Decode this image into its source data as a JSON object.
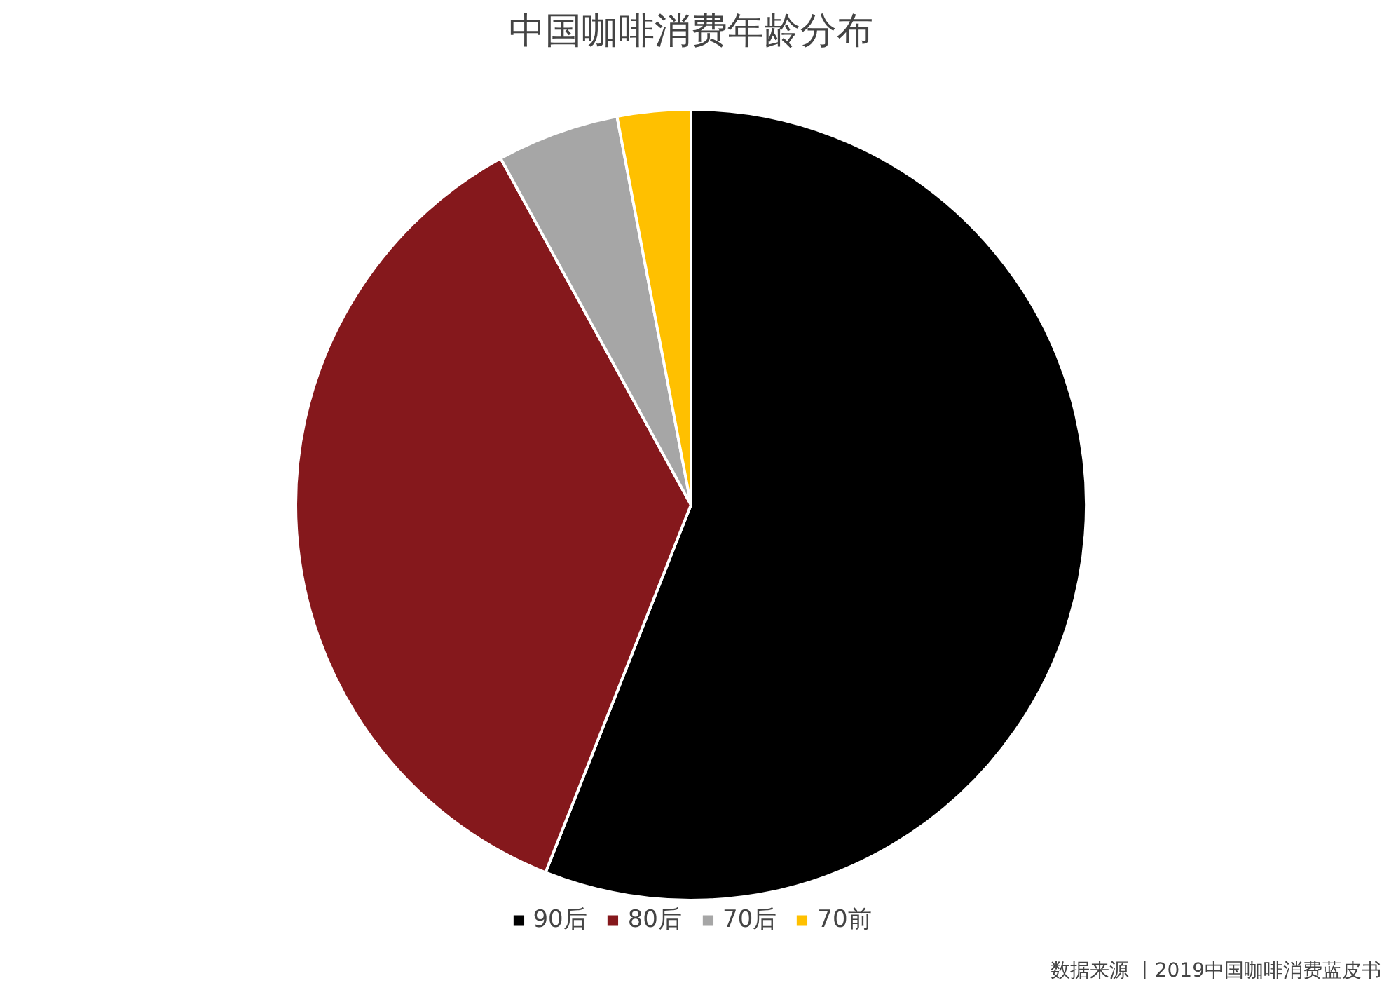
{
  "chart_data": {
    "type": "pie",
    "title": "中国咖啡消费年龄分布",
    "categories": [
      "90后",
      "80后",
      "70后",
      "70前"
    ],
    "values": [
      56,
      36,
      5,
      3
    ],
    "colors": [
      "#000000",
      "#85181c",
      "#a6a6a6",
      "#ffc000"
    ],
    "legend": "bottom",
    "annotations": [
      "数据来源 丨2019中国咖啡消费蓝皮书"
    ]
  }
}
